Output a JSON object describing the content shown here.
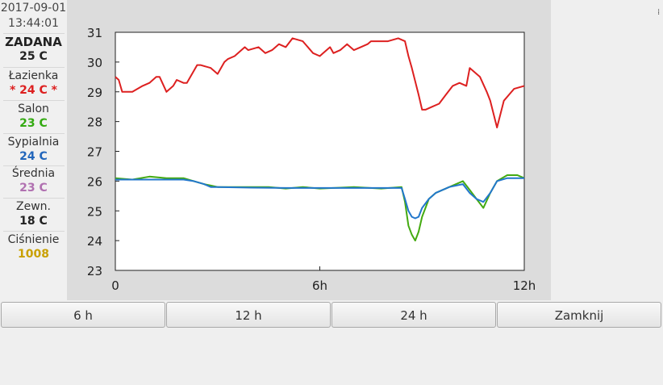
{
  "header": {
    "date": "2017-09-01",
    "time": "13:44:01"
  },
  "sidebar": {
    "items": [
      {
        "label": "ZADANA",
        "value": "25 C",
        "label_color": "#222222",
        "value_color": "#222222",
        "label_bold": true
      },
      {
        "label": "Łazienka",
        "value": "* 24 C *",
        "label_color": "#333333",
        "value_color": "#dd2020"
      },
      {
        "label": "Salon",
        "value": "23 C",
        "label_color": "#333333",
        "value_color": "#33aa11"
      },
      {
        "label": "Sypialnia",
        "value": "24 C",
        "label_color": "#333333",
        "value_color": "#2266bb"
      },
      {
        "label": "Średnia",
        "value": "23 C",
        "label_color": "#333333",
        "value_color": "#b070b0"
      },
      {
        "label": "Zewn.",
        "value": "18 C",
        "label_color": "#333333",
        "value_color": "#222222"
      },
      {
        "label": "Ciśnienie",
        "value": "1008",
        "label_color": "#333333",
        "value_color": "#c9a000"
      }
    ]
  },
  "buttons": {
    "b6h": "6 h",
    "b12h": "12 h",
    "b24h": "24 h",
    "close": "Zamknij"
  },
  "chart_data": {
    "type": "line",
    "xlim": [
      0,
      12
    ],
    "ylim": [
      23,
      31
    ],
    "x_ticks": [
      0,
      6,
      12
    ],
    "x_tick_labels": [
      "0",
      "6h",
      "12h"
    ],
    "y_ticks": [
      23,
      24,
      25,
      26,
      27,
      28,
      29,
      30,
      31
    ],
    "y_tick_labels": [
      "23",
      "24",
      "25",
      "26",
      "27",
      "28",
      "29",
      "30",
      "31"
    ],
    "series": [
      {
        "color": "#dd2020",
        "x": [
          0,
          0.1,
          0.2,
          0.5,
          0.8,
          1.0,
          1.2,
          1.3,
          1.5,
          1.7,
          1.8,
          2.0,
          2.1,
          2.4,
          2.5,
          2.8,
          3.0,
          3.2,
          3.3,
          3.5,
          3.8,
          3.9,
          4.2,
          4.4,
          4.6,
          4.8,
          5.0,
          5.2,
          5.5,
          5.8,
          6.0,
          6.1,
          6.3,
          6.4,
          6.6,
          6.8,
          7.0,
          7.2,
          7.4,
          7.5,
          7.7,
          8.0,
          8.3,
          8.5,
          8.6,
          8.7,
          8.9,
          9.0,
          9.1,
          9.3,
          9.5,
          9.7,
          9.9,
          10.1,
          10.3,
          10.4,
          10.7,
          10.9,
          11.0,
          11.2,
          11.4,
          11.7,
          12.0
        ],
        "y": [
          29.5,
          29.4,
          29.0,
          29.0,
          29.2,
          29.3,
          29.5,
          29.5,
          29.0,
          29.2,
          29.4,
          29.3,
          29.3,
          29.9,
          29.9,
          29.8,
          29.6,
          30.0,
          30.1,
          30.2,
          30.5,
          30.4,
          30.5,
          30.3,
          30.4,
          30.6,
          30.5,
          30.8,
          30.7,
          30.3,
          30.2,
          30.3,
          30.5,
          30.3,
          30.4,
          30.6,
          30.4,
          30.5,
          30.6,
          30.7,
          30.7,
          30.7,
          30.8,
          30.7,
          30.2,
          29.8,
          28.9,
          28.4,
          28.4,
          28.5,
          28.6,
          28.9,
          29.2,
          29.3,
          29.2,
          29.8,
          29.5,
          29.0,
          28.7,
          27.8,
          28.7,
          29.1,
          29.2
        ]
      },
      {
        "color": "#44aa11",
        "x": [
          0,
          0.5,
          1.0,
          1.5,
          2.0,
          2.3,
          2.6,
          2.8,
          3.0,
          4.0,
          4.5,
          5.0,
          5.5,
          6.0,
          7.0,
          7.8,
          8.4,
          8.5,
          8.6,
          8.7,
          8.8,
          8.9,
          9.0,
          9.1,
          9.2,
          9.4,
          9.8,
          10.2,
          10.4,
          10.6,
          10.8,
          11.0,
          11.2,
          11.5,
          11.8,
          12.0
        ],
        "y": [
          26.1,
          26.05,
          26.15,
          26.1,
          26.1,
          26.0,
          25.9,
          25.85,
          25.8,
          25.8,
          25.8,
          25.75,
          25.8,
          25.75,
          25.8,
          25.75,
          25.8,
          25.3,
          24.5,
          24.2,
          24.0,
          24.3,
          24.8,
          25.1,
          25.4,
          25.6,
          25.8,
          26.0,
          25.7,
          25.4,
          25.1,
          25.6,
          26.0,
          26.2,
          26.2,
          26.1
        ]
      },
      {
        "color": "#2277cc",
        "x": [
          0,
          0.5,
          1.0,
          1.5,
          2.0,
          2.3,
          2.6,
          2.8,
          3.0,
          4.0,
          5.0,
          6.0,
          7.0,
          7.8,
          8.4,
          8.5,
          8.6,
          8.7,
          8.8,
          8.9,
          9.0,
          9.2,
          9.4,
          9.8,
          10.2,
          10.4,
          10.6,
          10.8,
          11.0,
          11.2,
          11.5,
          11.8,
          12.0
        ],
        "y": [
          26.05,
          26.05,
          26.05,
          26.05,
          26.05,
          26.0,
          25.9,
          25.8,
          25.8,
          25.78,
          25.77,
          25.77,
          25.77,
          25.77,
          25.77,
          25.4,
          25.0,
          24.8,
          24.75,
          24.8,
          25.1,
          25.4,
          25.6,
          25.8,
          25.9,
          25.6,
          25.4,
          25.3,
          25.6,
          26.0,
          26.1,
          26.1,
          26.1
        ]
      }
    ]
  }
}
